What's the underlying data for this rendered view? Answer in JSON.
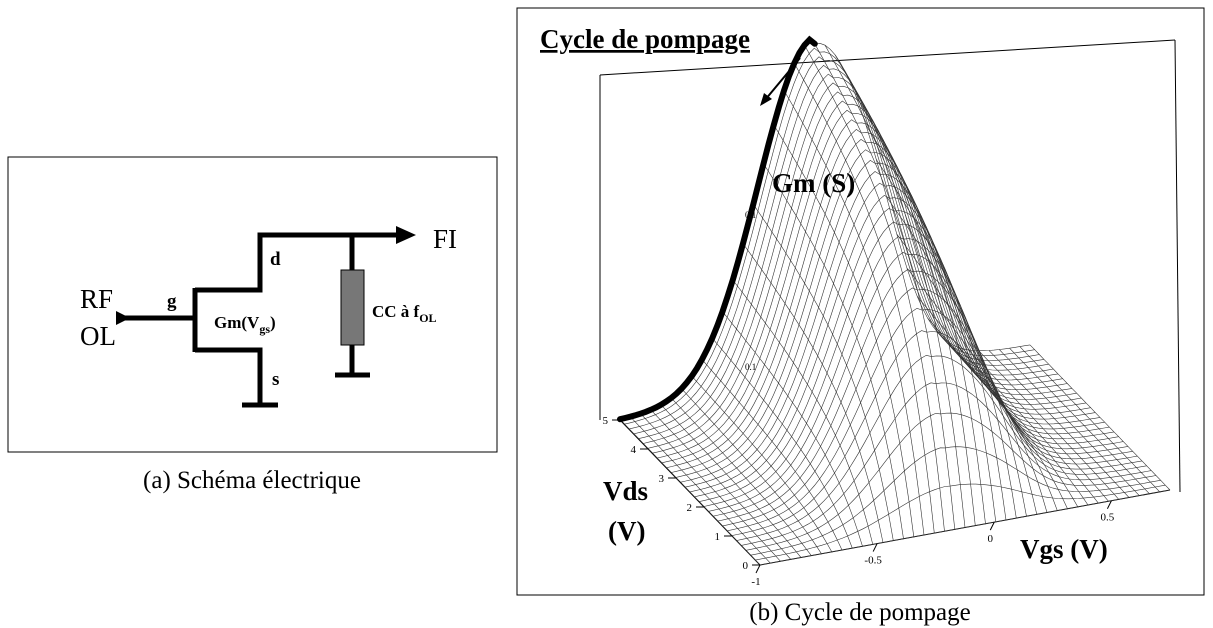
{
  "panel_a": {
    "caption": "(a) Schéma électrique",
    "rf": "RF",
    "ol": "OL",
    "fi": "FI",
    "g": "g",
    "d": "d",
    "s": "s",
    "gm": "Gm(V",
    "gm_sub": "gs",
    "gm_end": ")",
    "cc": "CC à f",
    "cc_sub": "OL"
  },
  "panel_b": {
    "caption": "(b) Cycle de pompage",
    "title": "Cycle de pompage",
    "z_label": "Gm (S)",
    "vds_label": "Vds",
    "vds_unit": "(V)",
    "vgs_label": "Vgs (V)",
    "vds_ticks": [
      "5",
      "4",
      "3",
      "2",
      "1",
      "0"
    ],
    "vgs_ticks": [
      "-1",
      "-0.5",
      "0",
      "0.5"
    ],
    "z_ticks": [
      "0.1",
      "0.1"
    ]
  }
}
